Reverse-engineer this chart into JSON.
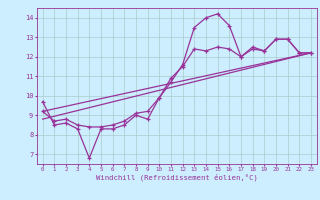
{
  "title": "",
  "xlabel": "Windchill (Refroidissement éolien,°C)",
  "background_color": "#cceeff",
  "grid_color": "#aacccc",
  "line_color": "#993399",
  "xlim": [
    -0.5,
    23.5
  ],
  "ylim": [
    6.5,
    14.5
  ],
  "yticks": [
    7,
    8,
    9,
    10,
    11,
    12,
    13,
    14
  ],
  "xticks": [
    0,
    1,
    2,
    3,
    4,
    5,
    6,
    7,
    8,
    9,
    10,
    11,
    12,
    13,
    14,
    15,
    16,
    17,
    18,
    19,
    20,
    21,
    22,
    23
  ],
  "line1_x": [
    0,
    1,
    2,
    3,
    4,
    5,
    6,
    7,
    8,
    9,
    10,
    11,
    12,
    13,
    14,
    15,
    16,
    17,
    18,
    19,
    20,
    21,
    22,
    23
  ],
  "line1_y": [
    9.7,
    8.5,
    8.6,
    8.3,
    6.8,
    8.3,
    8.3,
    8.5,
    9.0,
    8.8,
    9.9,
    10.9,
    11.5,
    12.4,
    12.3,
    12.5,
    12.4,
    12.0,
    12.5,
    12.3,
    12.9,
    12.9,
    12.2,
    12.2
  ],
  "line2_x": [
    0,
    1,
    2,
    3,
    4,
    5,
    6,
    7,
    8,
    9,
    10,
    11,
    12,
    13,
    14,
    15,
    16,
    17,
    18,
    19,
    20,
    21,
    22,
    23
  ],
  "line2_y": [
    9.2,
    8.7,
    8.8,
    8.5,
    8.4,
    8.4,
    8.5,
    8.7,
    9.1,
    9.2,
    9.9,
    10.7,
    11.6,
    13.5,
    14.0,
    14.2,
    13.6,
    12.0,
    12.4,
    12.3,
    12.9,
    12.9,
    12.2,
    12.2
  ],
  "line3_x": [
    0,
    23
  ],
  "line3_y": [
    8.8,
    12.2
  ],
  "line4_x": [
    0,
    23
  ],
  "line4_y": [
    9.2,
    12.2
  ]
}
